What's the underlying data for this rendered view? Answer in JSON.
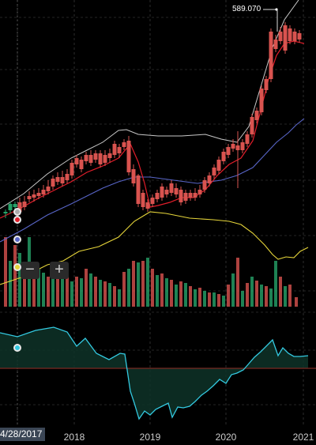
{
  "price_label": "589.070",
  "cursor_date": "4/28/2017",
  "controls": {
    "zoom_out": "−",
    "zoom_in": "+"
  },
  "x_axis": [
    "2018",
    "2019",
    "2020",
    "2021"
  ],
  "colors": {
    "up": "#26a269",
    "down": "#d9534f",
    "ma_fast": "#e11d2a",
    "ma_slow": "#5865c7",
    "band_upper": "#c8c8c8",
    "band_lower": "#e6d53a",
    "oscillator": "#33c9e0",
    "oscillator_fill": "#0e3328",
    "baseline": "#7a2a22"
  },
  "icons": [
    "legend-dot-icon",
    "minus-icon",
    "plus-icon"
  ]
}
